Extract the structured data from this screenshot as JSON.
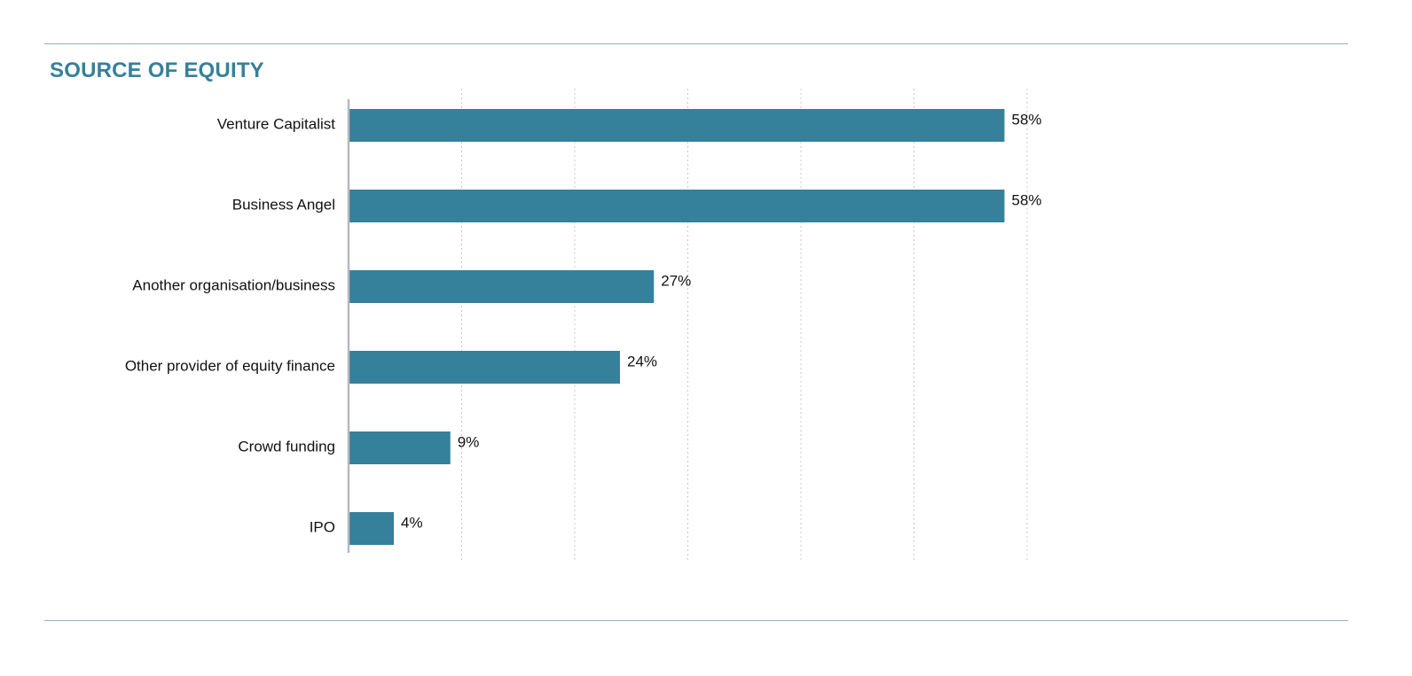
{
  "chart_data": {
    "type": "bar",
    "orientation": "horizontal",
    "title": "SOURCE OF EQUITY",
    "categories": [
      "Venture Capitalist",
      "Business Angel",
      "Another organisation/business",
      "Other provider of equity finance",
      "Crowd funding",
      "IPO"
    ],
    "values": [
      58,
      58,
      27,
      24,
      9,
      4
    ],
    "value_labels": [
      "58%",
      "58%",
      "27%",
      "24%",
      "9%",
      "4%"
    ],
    "xlim": [
      0,
      60
    ],
    "grid_step": 10,
    "grid": true,
    "legend": "none",
    "bar_color": "#35809a",
    "axis_color": "#b8b8c0",
    "grid_color": "#c8c8c8"
  }
}
